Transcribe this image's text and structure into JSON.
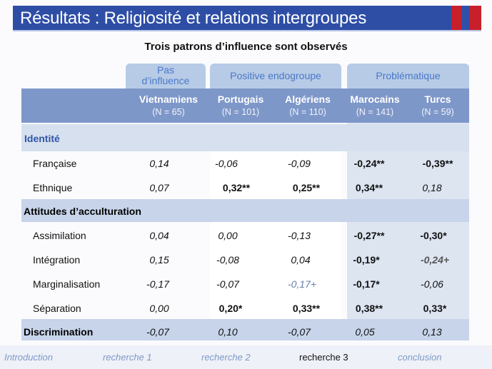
{
  "slide": {
    "title": "Résultats : Religiosité et relations  intergroupes",
    "subtitle": "Trois patrons d’influence sont observés"
  },
  "groups": [
    {
      "label": "Pas\nd’influence"
    },
    {
      "label": "Positive endogroupe"
    },
    {
      "label": "Problématique"
    }
  ],
  "columns": [
    {
      "name": "Vietnamiens",
      "n": "(N = 65)"
    },
    {
      "name": "Portugais",
      "n": "(N = 101)"
    },
    {
      "name": "Algériens",
      "n": "(N = 110)"
    },
    {
      "name": "Marocains",
      "n": "(N = 141)"
    },
    {
      "name": "Turcs",
      "n": "(N = 59)"
    }
  ],
  "sections": {
    "identite": "Identité",
    "attitudes": "Attitudes d’acculturation",
    "discrimination": "Discrimination"
  },
  "rows": [
    {
      "label": "Française",
      "values": [
        "0,14",
        "-0,06",
        "-0,09",
        "-0,24**",
        "-0,39**"
      ]
    },
    {
      "label": "Ethnique",
      "values": [
        "0,07",
        "0,32**",
        "0,25**",
        "0,34**",
        "0,18"
      ]
    },
    {
      "label": "Assimilation",
      "values": [
        "0,04",
        "0,00",
        "-0,13",
        "-0,27**",
        "-0,30*"
      ]
    },
    {
      "label": "Intégration",
      "values": [
        "0,15",
        "-0,08",
        "0,04",
        "-0,19*",
        "-0,24+"
      ]
    },
    {
      "label": "Marginalisation",
      "values": [
        "-0,17",
        "-0,07",
        "-0,17+",
        "-0,17*",
        "-0,06"
      ]
    },
    {
      "label": "Séparation",
      "values": [
        "0,00",
        "0,20*",
        "0,33**",
        "0,38**",
        "0,33*"
      ]
    },
    {
      "label": "Discrimination",
      "values": [
        "-0,07",
        "0,10",
        "-0,07",
        "0,05",
        "0,13"
      ]
    }
  ],
  "nav": [
    "Introduction",
    "recherche 1",
    "recherche 2",
    "recherche 3",
    "conclusion"
  ],
  "colors": {
    "title_bar": "#2e4ea6",
    "accent_red": "#c8202a",
    "header": "#7e97c9",
    "band": "#c7d4ea",
    "nav": "#7d99c8"
  }
}
